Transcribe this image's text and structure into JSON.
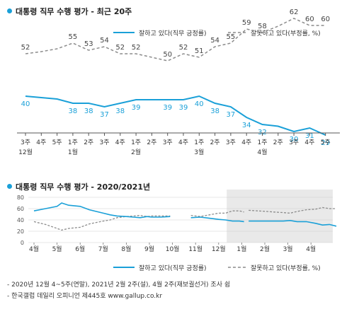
{
  "colors": {
    "approve": "#1aa0d8",
    "disapprove": "#8c8c8c",
    "shade": "#e9e9e9",
    "dot": "#1aa0d8"
  },
  "chart1": {
    "title": "대통령 직무 수행 평가 - 최근 20주",
    "legend": {
      "approve": "잘하고 있다(직무 긍정률)",
      "disapprove": "잘못하고 있다(부정률, %)"
    }
  },
  "chart2": {
    "title": "대통령 직무 수행 평가 - 2020/2021년",
    "legend": {
      "approve": "잘하고 있다(직무 긍정률)",
      "disapprove": "잘못하고 있다(부정률, %)"
    }
  },
  "footnotes": [
    "- 2020년 12월 4~5주(연말), 2021년 2월 2주(설), 4월 2주(재보궐선거) 조사 쉼",
    "- 한국갤럽 데일리 오피니언 제445호 www.gallup.co.kr"
  ],
  "chart_data": [
    {
      "type": "line",
      "title": "대통령 직무 수행 평가 - 최근 20주",
      "x": [
        "3주",
        "4주",
        "5주",
        "1주",
        "2주",
        "3주",
        "4주",
        "1주",
        "2주",
        "3주",
        "4주",
        "1주",
        "2주",
        "3주",
        "4주",
        "1주",
        "2주",
        "3주",
        "4주",
        "5주"
      ],
      "month_labels": [
        {
          "index": 0,
          "label": "12월"
        },
        {
          "index": 3,
          "label": "1월"
        },
        {
          "index": 7,
          "label": "2월"
        },
        {
          "index": 11,
          "label": "3월"
        },
        {
          "index": 15,
          "label": "4월"
        }
      ],
      "series": [
        {
          "name": "잘하고 있다(직무 긍정률)",
          "values": [
            40,
            null,
            null,
            38,
            38,
            37,
            38,
            39,
            null,
            39,
            39,
            40,
            38,
            37,
            34,
            32,
            null,
            30,
            31,
            29
          ]
        },
        {
          "name": "잘못하고 있다(부정률, %)",
          "values": [
            52,
            null,
            null,
            55,
            53,
            54,
            52,
            52,
            null,
            50,
            52,
            51,
            54,
            55,
            59,
            58,
            null,
            62,
            60,
            60
          ]
        }
      ],
      "trend": {
        "approve": [
          40,
          39.6,
          39.2,
          38,
          38,
          37,
          38,
          39,
          39,
          39,
          39,
          40,
          38,
          37,
          34,
          32,
          31.5,
          30,
          31,
          29
        ],
        "disapprove": [
          52,
          52.6,
          53.4,
          55,
          53,
          54,
          52,
          52,
          51,
          50,
          52,
          51,
          54,
          55,
          59,
          58,
          59.8,
          62,
          60,
          60
        ]
      },
      "ylim": [
        0,
        100
      ]
    },
    {
      "type": "line",
      "title": "대통령 직무 수행 평가 - 2020/2021년",
      "months": [
        "4월",
        "5월",
        "6월",
        "7월",
        "8월",
        "9월",
        "10월",
        "11월",
        "12월",
        "1월",
        "2월",
        "3월",
        "4월"
      ],
      "yticks": [
        0,
        20,
        40,
        60,
        80
      ],
      "ylim": [
        0,
        80
      ],
      "shaded_from_month_index": 8.35,
      "series": [
        {
          "name": "잘하고 있다(직무 긍정률)",
          "points": [
            [
              0,
              56
            ],
            [
              0.5,
              60
            ],
            [
              1,
              64
            ],
            [
              1.2,
              70
            ],
            [
              1.5,
              66
            ],
            [
              2,
              64
            ],
            [
              2.4,
              58
            ],
            [
              3,
              52
            ],
            [
              3.3,
              49
            ],
            [
              3.6,
              47
            ],
            [
              4,
              46
            ],
            [
              4.3,
              45
            ],
            [
              4.6,
              44
            ],
            [
              4.9,
              46
            ],
            [
              5.1,
              45
            ],
            [
              5.5,
              45
            ],
            [
              5.9,
              46
            ],
            null,
            [
              6.8,
              44
            ],
            [
              7.2,
              45
            ],
            [
              7.6,
              43
            ],
            [
              8,
              41
            ],
            [
              8.3,
              40
            ],
            [
              8.6,
              38
            ],
            [
              8.9,
              38
            ],
            [
              9.1,
              37
            ],
            null,
            [
              9.3,
              38
            ],
            [
              9.7,
              38
            ],
            [
              10.1,
              38
            ],
            [
              10.4,
              38
            ],
            [
              10.8,
              38
            ],
            [
              11.1,
              39
            ],
            [
              11.4,
              37
            ],
            [
              11.8,
              37
            ],
            [
              12.2,
              34
            ],
            [
              12.5,
              31
            ],
            [
              12.8,
              32
            ],
            [
              13.1,
              29
            ]
          ]
        },
        {
          "name": "잘못하고 있다(부정률, %)",
          "points": [
            [
              0,
              37
            ],
            [
              0.5,
              32
            ],
            [
              1,
              25
            ],
            [
              1.2,
              22
            ],
            [
              1.5,
              25
            ],
            [
              2,
              27
            ],
            [
              2.4,
              33
            ],
            [
              3,
              38
            ],
            [
              3.3,
              40
            ],
            [
              3.6,
              44
            ],
            [
              4,
              46
            ],
            [
              4.3,
              47
            ],
            [
              4.6,
              48
            ],
            [
              4.9,
              46
            ],
            [
              5.1,
              47
            ],
            [
              5.5,
              47
            ],
            [
              5.9,
              47
            ],
            null,
            [
              6.8,
              48
            ],
            [
              7.2,
              46
            ],
            [
              7.6,
              49
            ],
            [
              8,
              52
            ],
            [
              8.3,
              52
            ],
            [
              8.6,
              56
            ],
            [
              8.9,
              56
            ],
            [
              9.1,
              54
            ],
            null,
            [
              9.3,
              57
            ],
            [
              9.7,
              56
            ],
            [
              10.1,
              55
            ],
            [
              10.4,
              54
            ],
            [
              10.8,
              53
            ],
            [
              11.1,
              52
            ],
            [
              11.4,
              55
            ],
            [
              11.8,
              58
            ],
            [
              12.2,
              59
            ],
            [
              12.5,
              62
            ],
            [
              12.8,
              60
            ],
            [
              13.1,
              60
            ]
          ]
        }
      ]
    }
  ]
}
